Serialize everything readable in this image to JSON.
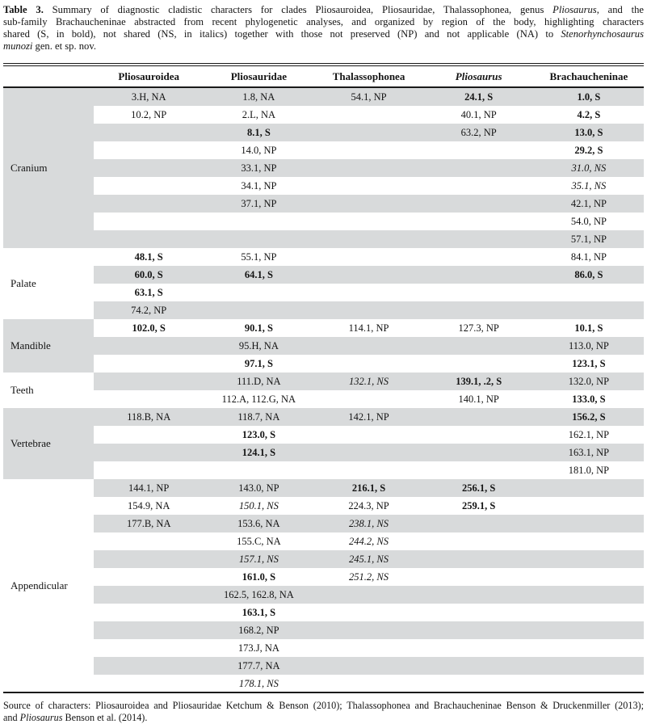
{
  "colors": {
    "stripe": "#d8dadb",
    "rule": "#1a1a1a",
    "text": "#141414"
  },
  "caption": {
    "lines": [
      {
        "justify": true,
        "segments": [
          {
            "t": "Table 3.",
            "b": true
          },
          {
            "t": " Summary of diagnostic cladistic characters for clades Pliosauroidea, Pliosauridae, Thalassophonea, genus "
          },
          {
            "t": "Pliosaurus",
            "i": true
          },
          {
            "t": ", and the"
          }
        ]
      },
      {
        "justify": true,
        "segments": [
          {
            "t": "sub-family Brachaucheninae abstracted from recent phylogenetic analyses, and organized by region of the body, highlighting characters"
          }
        ]
      },
      {
        "justify": true,
        "segments": [
          {
            "t": "shared (S, in bold), not shared (NS, in italics) together with those not preserved (NP) and not applicable (NA) to "
          },
          {
            "t": "Stenorhynchosaurus",
            "i": true
          }
        ]
      },
      {
        "justify": false,
        "segments": [
          {
            "t": "munozi",
            "i": true
          },
          {
            "t": " gen. et sp. nov."
          }
        ]
      }
    ]
  },
  "table": {
    "columns": [
      {
        "label": "Pliosauroidea",
        "italic": false
      },
      {
        "label": "Pliosauridae",
        "italic": false
      },
      {
        "label": "Thalassophonea",
        "italic": false
      },
      {
        "label": "Pliosaurus",
        "italic": true
      },
      {
        "label": "Brachaucheninae",
        "italic": false
      }
    ],
    "groups": [
      {
        "label": "Cranium",
        "shaded_label": true,
        "rows": [
          [
            {
              "t": "3.H, NA"
            },
            {
              "t": "1.8, NA"
            },
            {
              "t": "54.1, NP"
            },
            {
              "t": "24.1, S",
              "b": true
            },
            {
              "t": "1.0, S",
              "b": true
            }
          ],
          [
            {
              "t": "10.2, NP"
            },
            {
              "t": "2.L, NA"
            },
            null,
            {
              "t": "40.1, NP"
            },
            {
              "t": "4.2, S",
              "b": true
            }
          ],
          [
            null,
            {
              "t": "8.1, S",
              "b": true
            },
            null,
            {
              "t": "63.2, NP"
            },
            {
              "t": "13.0, S",
              "b": true
            }
          ],
          [
            null,
            {
              "t": "14.0, NP"
            },
            null,
            null,
            {
              "t": "29.2, S",
              "b": true
            }
          ],
          [
            null,
            {
              "t": "33.1, NP"
            },
            null,
            null,
            {
              "t": "31.0, NS",
              "i": true
            }
          ],
          [
            null,
            {
              "t": "34.1, NP"
            },
            null,
            null,
            {
              "t": "35.1, NS",
              "i": true
            }
          ],
          [
            null,
            {
              "t": "37.1, NP"
            },
            null,
            null,
            {
              "t": "42.1, NP"
            }
          ],
          [
            null,
            null,
            null,
            null,
            {
              "t": "54.0, NP"
            }
          ],
          [
            null,
            null,
            null,
            null,
            {
              "t": "57.1, NP"
            }
          ]
        ]
      },
      {
        "label": "Palate",
        "shaded_label": false,
        "rows": [
          [
            {
              "t": "48.1, S",
              "b": true
            },
            {
              "t": "55.1, NP"
            },
            null,
            null,
            {
              "t": "84.1, NP"
            }
          ],
          [
            {
              "t": "60.0, S",
              "b": true
            },
            {
              "t": "64.1, S",
              "b": true
            },
            null,
            null,
            {
              "t": "86.0, S",
              "b": true
            }
          ],
          [
            {
              "t": "63.1, S",
              "b": true
            },
            null,
            null,
            null,
            null
          ],
          [
            {
              "t": "74.2, NP"
            },
            null,
            null,
            null,
            null
          ]
        ]
      },
      {
        "label": "Mandible",
        "shaded_label": true,
        "rows": [
          [
            {
              "t": "102.0, S",
              "b": true
            },
            {
              "t": "90.1, S",
              "b": true
            },
            {
              "t": "114.1, NP"
            },
            {
              "t": "127.3, NP"
            },
            {
              "t": "10.1, S",
              "b": true
            }
          ],
          [
            null,
            {
              "t": "95.H, NA"
            },
            null,
            null,
            {
              "t": "113.0, NP"
            }
          ],
          [
            null,
            {
              "t": "97.1, S",
              "b": true
            },
            null,
            null,
            {
              "t": "123.1, S",
              "b": true
            }
          ]
        ]
      },
      {
        "label": "Teeth",
        "shaded_label": false,
        "rows": [
          [
            null,
            {
              "t": "111.D, NA"
            },
            {
              "t": "132.1, NS",
              "i": true
            },
            {
              "t": "139.1, .2, S",
              "b": true
            },
            {
              "t": "132.0, NP"
            }
          ],
          [
            null,
            {
              "t": "112.A, 112.G, NA"
            },
            null,
            {
              "t": "140.1, NP"
            },
            {
              "t": "133.0, S",
              "b": true
            }
          ]
        ]
      },
      {
        "label": "Vertebrae",
        "shaded_label": true,
        "rows": [
          [
            {
              "t": "118.B, NA"
            },
            {
              "t": "118.7, NA"
            },
            {
              "t": "142.1, NP"
            },
            null,
            {
              "t": "156.2, S",
              "b": true
            }
          ],
          [
            null,
            {
              "t": "123.0, S",
              "b": true
            },
            null,
            null,
            {
              "t": "162.1, NP"
            }
          ],
          [
            null,
            {
              "t": "124.1, S",
              "b": true
            },
            null,
            null,
            {
              "t": "163.1, NP"
            }
          ],
          [
            null,
            null,
            null,
            null,
            {
              "t": "181.0, NP"
            }
          ]
        ]
      },
      {
        "label": "Appendicular",
        "shaded_label": false,
        "rows": [
          [
            {
              "t": "144.1, NP"
            },
            {
              "t": "143.0, NP"
            },
            {
              "t": "216.1, S",
              "b": true
            },
            {
              "t": "256.1, S",
              "b": true
            },
            null
          ],
          [
            {
              "t": "154.9, NA"
            },
            {
              "t": "150.1, NS",
              "i": true
            },
            {
              "t": "224.3, NP"
            },
            {
              "t": "259.1, S",
              "b": true
            },
            null
          ],
          [
            {
              "t": "177.B, NA"
            },
            {
              "t": "153.6, NA"
            },
            {
              "t": "238.1, NS",
              "i": true
            },
            null,
            null
          ],
          [
            null,
            {
              "t": "155.C, NA"
            },
            {
              "t": "244.2, NS",
              "i": true
            },
            null,
            null
          ],
          [
            null,
            {
              "t": "157.1, NS",
              "i": true
            },
            {
              "t": "245.1, NS",
              "i": true
            },
            null,
            null
          ],
          [
            null,
            {
              "t": "161.0, S",
              "b": true
            },
            {
              "t": "251.2, NS",
              "i": true
            },
            null,
            null
          ],
          [
            null,
            {
              "t": "162.5, 162.8, NA"
            },
            null,
            null,
            null
          ],
          [
            null,
            {
              "t": "163.1, S",
              "b": true
            },
            null,
            null,
            null
          ],
          [
            null,
            {
              "t": "168.2, NP"
            },
            null,
            null,
            null
          ],
          [
            null,
            {
              "t": "173.J, NA"
            },
            null,
            null,
            null
          ],
          [
            null,
            {
              "t": "177.7, NA"
            },
            null,
            null,
            null
          ],
          [
            null,
            {
              "t": "178.1, NS",
              "i": true
            },
            null,
            null,
            null
          ]
        ]
      }
    ]
  },
  "footnote": {
    "lines": [
      {
        "justify": true,
        "segments": [
          {
            "t": "Source of characters: Pliosauroidea and Pliosauridae Ketchum & Benson (2010); Thalassophonea and Brachaucheninae Benson & Druckenmiller (2013);"
          }
        ]
      },
      {
        "justify": false,
        "segments": [
          {
            "t": "and "
          },
          {
            "t": "Pliosaurus",
            "i": true
          },
          {
            "t": " Benson et al. (2014)."
          }
        ]
      }
    ]
  }
}
